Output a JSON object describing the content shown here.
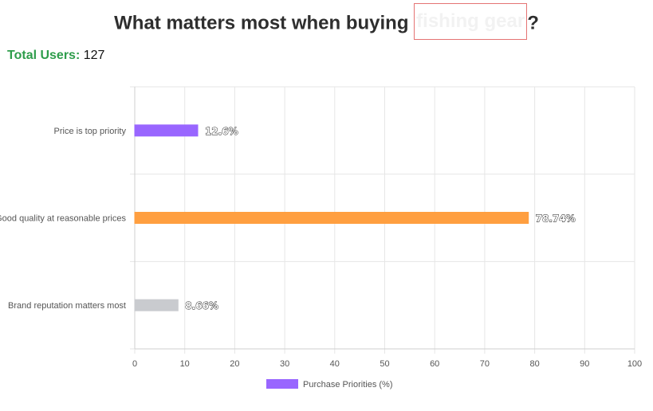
{
  "header": {
    "title_pre": "What matters most when buying ",
    "title_highlight": "fishing gear",
    "title_post": "?"
  },
  "summary": {
    "users_label": "Total Users:",
    "users_value": "127"
  },
  "colors": {
    "purple": "#9966ff",
    "orange": "#ff9f40",
    "grey": "#c9cbcf",
    "grid": "#e6e6e6"
  },
  "chart_data": {
    "type": "bar",
    "orientation": "horizontal",
    "categories": [
      "Price is top priority",
      "Good quality at reasonable prices",
      "Brand reputation matters most"
    ],
    "series": [
      {
        "name": "Purchase Priorities (%)",
        "values": [
          12.6,
          78.74,
          8.66
        ],
        "labels": [
          "12.6%",
          "78.74%",
          "8.66%"
        ]
      }
    ],
    "bar_colors": [
      "#9966ff",
      "#ff9f40",
      "#c9cbcf"
    ],
    "xlim": [
      0,
      100
    ],
    "xticks": [
      0,
      10,
      20,
      30,
      40,
      50,
      60,
      70,
      80,
      90,
      100
    ],
    "grid": true,
    "legend": "bottom"
  }
}
